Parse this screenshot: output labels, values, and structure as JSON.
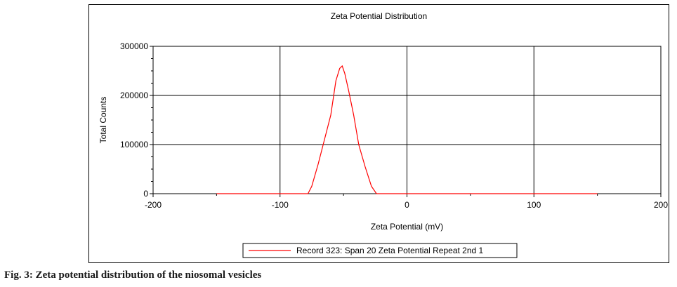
{
  "chart_data": {
    "type": "line",
    "title": "Zeta Potential Distribution",
    "xlabel": "Zeta Potential (mV)",
    "ylabel": "Total Counts",
    "xlim": [
      -200,
      200
    ],
    "ylim": [
      0,
      300000
    ],
    "x_ticks": [
      -200,
      -100,
      0,
      100,
      200
    ],
    "x_tick_labels": [
      "-200",
      "-100",
      "0",
      "100",
      "200"
    ],
    "y_ticks": [
      0,
      100000,
      200000,
      300000
    ],
    "y_tick_labels": [
      "0",
      "100000",
      "200000",
      "300000"
    ],
    "grid": true,
    "legend_position": "bottom-center",
    "series": [
      {
        "name": "Record 323: Span 20 Zeta Potential Repeat 2nd 1",
        "color": "#ff0000",
        "x": [
          -150,
          -100,
          -78,
          -75,
          -70,
          -65,
          -60,
          -56,
          -53,
          -51,
          -49,
          -46,
          -42,
          -38,
          -33,
          -28,
          -24,
          0,
          100,
          150
        ],
        "y": [
          0,
          0,
          0,
          15000,
          60000,
          110000,
          160000,
          230000,
          255000,
          260000,
          245000,
          210000,
          160000,
          100000,
          55000,
          15000,
          0,
          0,
          0,
          0
        ]
      }
    ]
  },
  "caption": "Fig. 3: Zeta potential distribution of the niosomal vesicles"
}
